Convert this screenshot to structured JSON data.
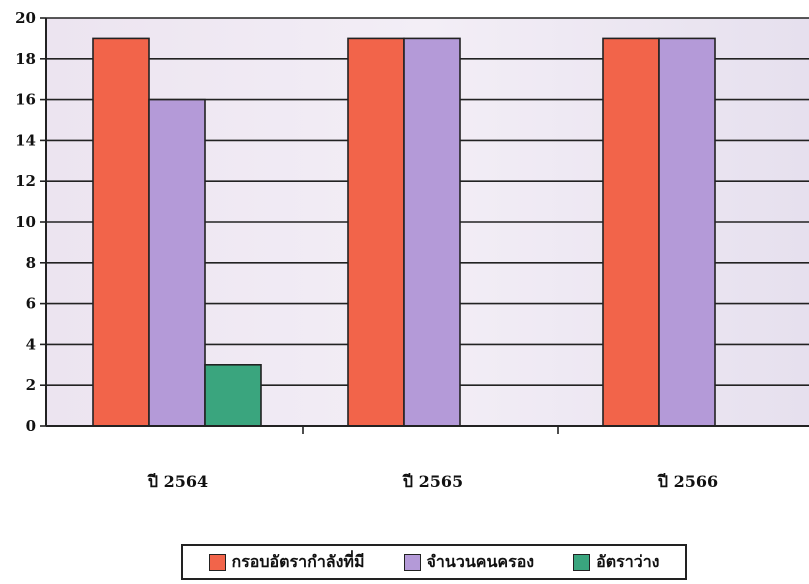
{
  "chart_data": {
    "type": "bar",
    "categories": [
      "ปี 2564",
      "ปี 2565",
      "ปี 2566"
    ],
    "series": [
      {
        "name": "กรอบอัตรากำลังที่มี",
        "values": [
          19,
          19,
          19
        ],
        "color": "#f2644a"
      },
      {
        "name": "จำนวนคนครอง",
        "values": [
          16,
          19,
          19
        ],
        "color": "#b49ad8"
      },
      {
        "name": "อัตราว่าง",
        "values": [
          3,
          0,
          0
        ],
        "color": "#3aa57e"
      }
    ],
    "title": "",
    "xlabel": "",
    "ylabel": "",
    "ylim": [
      0,
      20
    ],
    "yticks": [
      "0",
      "2",
      "4",
      "6",
      "8",
      "10",
      "12",
      "14",
      "16",
      "18",
      "20"
    ],
    "grid": true,
    "legend": "bottom",
    "plot_background": "#e8e0ef"
  }
}
